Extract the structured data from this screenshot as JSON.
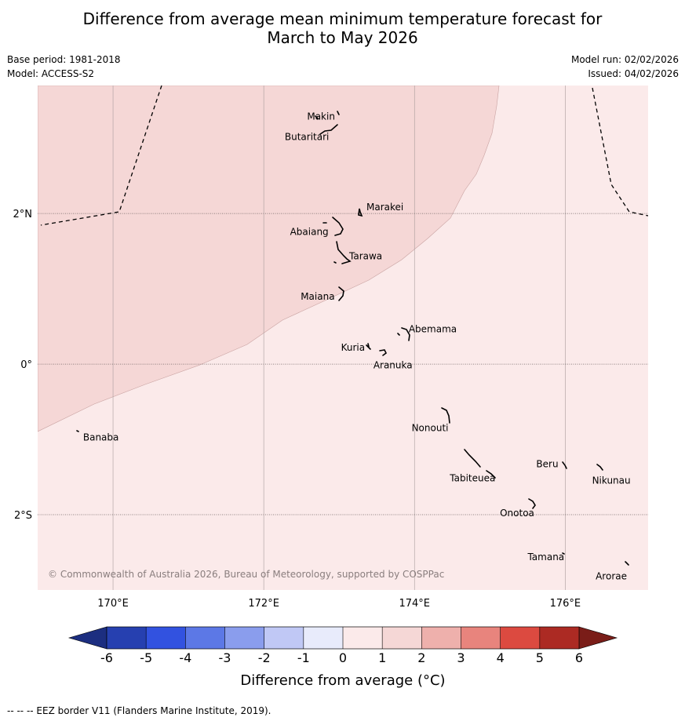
{
  "title": {
    "line1": "Difference from average mean minimum temperature forecast for",
    "line2": "March to May 2026"
  },
  "meta": {
    "base_period": "Base period: 1981-2018",
    "model": "Model: ACCESS-S2",
    "model_run": "Model run: 02/02/2026",
    "issued": "Issued: 04/02/2026"
  },
  "map": {
    "lon_range": [
      169.0,
      177.1
    ],
    "lat_range": [
      -3.0,
      3.7
    ],
    "ocean_colors": {
      "light": "#fbeaea",
      "dark": "#f5d7d6"
    },
    "x_axis_labels": [
      {
        "lon": 170,
        "label": "170°E"
      },
      {
        "lon": 172,
        "label": "172°E"
      },
      {
        "lon": 174,
        "label": "174°E"
      },
      {
        "lon": 176,
        "label": "176°E"
      }
    ],
    "y_axis_labels": [
      {
        "lat": 2,
        "label": "2°N"
      },
      {
        "lat": 0,
        "label": "0°"
      },
      {
        "lat": -2,
        "label": "2°S"
      }
    ],
    "places": [
      {
        "name": "Makin",
        "lon": 172.96,
        "lat": 3.33
      },
      {
        "name": "Butaritari",
        "lon": 172.83,
        "lat": 3.08
      },
      {
        "name": "Marakei",
        "lon": 173.3,
        "lat": 2.0
      },
      {
        "name": "Abaiang",
        "lon": 172.9,
        "lat": 1.81
      },
      {
        "name": "Tarawa",
        "lon": 173.05,
        "lat": 1.4
      },
      {
        "name": "Maiana",
        "lon": 173.0,
        "lat": 0.93
      },
      {
        "name": "Abemama",
        "lon": 173.85,
        "lat": 0.4
      },
      {
        "name": "Kuria",
        "lon": 173.4,
        "lat": 0.22
      },
      {
        "name": "Aranuka",
        "lon": 173.6,
        "lat": 0.16
      },
      {
        "name": "Banaba",
        "lon": 169.54,
        "lat": -0.86
      },
      {
        "name": "Nonouti",
        "lon": 174.42,
        "lat": -0.67
      },
      {
        "name": "Beru",
        "lon": 175.98,
        "lat": -1.33
      },
      {
        "name": "Nikunau",
        "lon": 176.45,
        "lat": -1.36
      },
      {
        "name": "Tabiteuea",
        "lon": 174.75,
        "lat": -1.35
      },
      {
        "name": "Onotoa",
        "lon": 175.55,
        "lat": -1.8
      },
      {
        "name": "Tamana",
        "lon": 175.97,
        "lat": -2.5
      },
      {
        "name": "Arorae",
        "lon": 176.82,
        "lat": -2.64
      }
    ],
    "copyright": "© Commonwealth of Australia 2026, Bureau of Meteorology, supported by COSPPac"
  },
  "colorbar": {
    "ticks": [
      -6,
      -5,
      -4,
      -3,
      -2,
      -1,
      0,
      1,
      2,
      3,
      4,
      5,
      6
    ],
    "colors": [
      "#2640b0",
      "#3252e0",
      "#5c78e6",
      "#8a9ded",
      "#c0c8f5",
      "#e8ebfb",
      "#fbeaea",
      "#f5d7d6",
      "#eeb0ac",
      "#e8847d",
      "#dc4a40",
      "#ac2a23"
    ],
    "extend_low_color": "#1c2e80",
    "extend_high_color": "#7a1d18",
    "label": "Difference from average (°C)"
  },
  "footer": {
    "note": "--  --  -- EEZ border V11 (Flanders Marine Institute, 2019)."
  }
}
